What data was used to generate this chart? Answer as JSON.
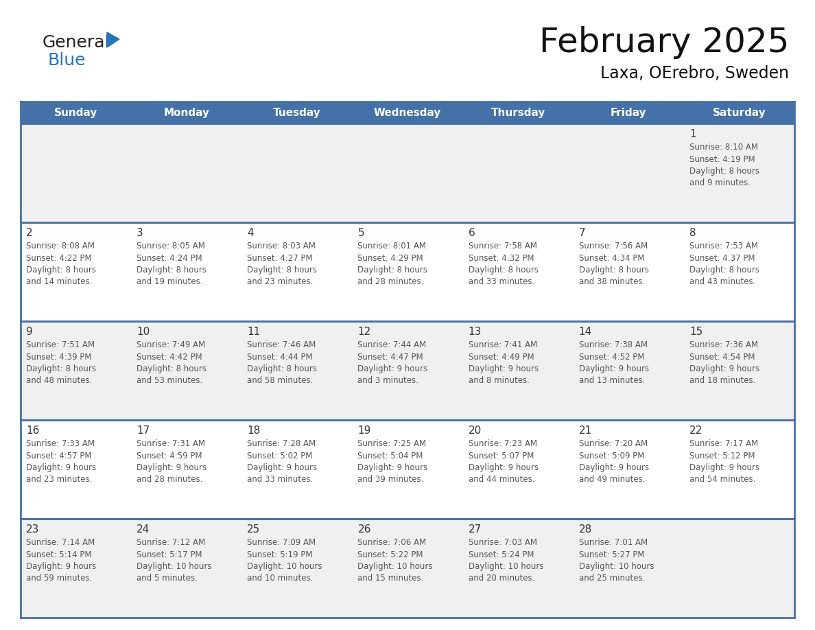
{
  "title": "February 2025",
  "subtitle": "Laxa, OErebro, Sweden",
  "days_of_week": [
    "Sunday",
    "Monday",
    "Tuesday",
    "Wednesday",
    "Thursday",
    "Friday",
    "Saturday"
  ],
  "header_bg": "#4472a8",
  "header_text": "#ffffff",
  "row_bg_light": "#f0f0f0",
  "row_bg_white": "#ffffff",
  "border_color": "#4472a8",
  "day_num_color": "#333333",
  "info_color": "#555555",
  "calendar_data": [
    {
      "day": 1,
      "col": 6,
      "row": 0,
      "sunrise": "8:10 AM",
      "sunset": "4:19 PM",
      "daylight_line1": "Daylight: 8 hours",
      "daylight_line2": "and 9 minutes."
    },
    {
      "day": 2,
      "col": 0,
      "row": 1,
      "sunrise": "8:08 AM",
      "sunset": "4:22 PM",
      "daylight_line1": "Daylight: 8 hours",
      "daylight_line2": "and 14 minutes."
    },
    {
      "day": 3,
      "col": 1,
      "row": 1,
      "sunrise": "8:05 AM",
      "sunset": "4:24 PM",
      "daylight_line1": "Daylight: 8 hours",
      "daylight_line2": "and 19 minutes."
    },
    {
      "day": 4,
      "col": 2,
      "row": 1,
      "sunrise": "8:03 AM",
      "sunset": "4:27 PM",
      "daylight_line1": "Daylight: 8 hours",
      "daylight_line2": "and 23 minutes."
    },
    {
      "day": 5,
      "col": 3,
      "row": 1,
      "sunrise": "8:01 AM",
      "sunset": "4:29 PM",
      "daylight_line1": "Daylight: 8 hours",
      "daylight_line2": "and 28 minutes."
    },
    {
      "day": 6,
      "col": 4,
      "row": 1,
      "sunrise": "7:58 AM",
      "sunset": "4:32 PM",
      "daylight_line1": "Daylight: 8 hours",
      "daylight_line2": "and 33 minutes."
    },
    {
      "day": 7,
      "col": 5,
      "row": 1,
      "sunrise": "7:56 AM",
      "sunset": "4:34 PM",
      "daylight_line1": "Daylight: 8 hours",
      "daylight_line2": "and 38 minutes."
    },
    {
      "day": 8,
      "col": 6,
      "row": 1,
      "sunrise": "7:53 AM",
      "sunset": "4:37 PM",
      "daylight_line1": "Daylight: 8 hours",
      "daylight_line2": "and 43 minutes."
    },
    {
      "day": 9,
      "col": 0,
      "row": 2,
      "sunrise": "7:51 AM",
      "sunset": "4:39 PM",
      "daylight_line1": "Daylight: 8 hours",
      "daylight_line2": "and 48 minutes."
    },
    {
      "day": 10,
      "col": 1,
      "row": 2,
      "sunrise": "7:49 AM",
      "sunset": "4:42 PM",
      "daylight_line1": "Daylight: 8 hours",
      "daylight_line2": "and 53 minutes."
    },
    {
      "day": 11,
      "col": 2,
      "row": 2,
      "sunrise": "7:46 AM",
      "sunset": "4:44 PM",
      "daylight_line1": "Daylight: 8 hours",
      "daylight_line2": "and 58 minutes."
    },
    {
      "day": 12,
      "col": 3,
      "row": 2,
      "sunrise": "7:44 AM",
      "sunset": "4:47 PM",
      "daylight_line1": "Daylight: 9 hours",
      "daylight_line2": "and 3 minutes."
    },
    {
      "day": 13,
      "col": 4,
      "row": 2,
      "sunrise": "7:41 AM",
      "sunset": "4:49 PM",
      "daylight_line1": "Daylight: 9 hours",
      "daylight_line2": "and 8 minutes."
    },
    {
      "day": 14,
      "col": 5,
      "row": 2,
      "sunrise": "7:38 AM",
      "sunset": "4:52 PM",
      "daylight_line1": "Daylight: 9 hours",
      "daylight_line2": "and 13 minutes."
    },
    {
      "day": 15,
      "col": 6,
      "row": 2,
      "sunrise": "7:36 AM",
      "sunset": "4:54 PM",
      "daylight_line1": "Daylight: 9 hours",
      "daylight_line2": "and 18 minutes."
    },
    {
      "day": 16,
      "col": 0,
      "row": 3,
      "sunrise": "7:33 AM",
      "sunset": "4:57 PM",
      "daylight_line1": "Daylight: 9 hours",
      "daylight_line2": "and 23 minutes."
    },
    {
      "day": 17,
      "col": 1,
      "row": 3,
      "sunrise": "7:31 AM",
      "sunset": "4:59 PM",
      "daylight_line1": "Daylight: 9 hours",
      "daylight_line2": "and 28 minutes."
    },
    {
      "day": 18,
      "col": 2,
      "row": 3,
      "sunrise": "7:28 AM",
      "sunset": "5:02 PM",
      "daylight_line1": "Daylight: 9 hours",
      "daylight_line2": "and 33 minutes."
    },
    {
      "day": 19,
      "col": 3,
      "row": 3,
      "sunrise": "7:25 AM",
      "sunset": "5:04 PM",
      "daylight_line1": "Daylight: 9 hours",
      "daylight_line2": "and 39 minutes."
    },
    {
      "day": 20,
      "col": 4,
      "row": 3,
      "sunrise": "7:23 AM",
      "sunset": "5:07 PM",
      "daylight_line1": "Daylight: 9 hours",
      "daylight_line2": "and 44 minutes."
    },
    {
      "day": 21,
      "col": 5,
      "row": 3,
      "sunrise": "7:20 AM",
      "sunset": "5:09 PM",
      "daylight_line1": "Daylight: 9 hours",
      "daylight_line2": "and 49 minutes."
    },
    {
      "day": 22,
      "col": 6,
      "row": 3,
      "sunrise": "7:17 AM",
      "sunset": "5:12 PM",
      "daylight_line1": "Daylight: 9 hours",
      "daylight_line2": "and 54 minutes."
    },
    {
      "day": 23,
      "col": 0,
      "row": 4,
      "sunrise": "7:14 AM",
      "sunset": "5:14 PM",
      "daylight_line1": "Daylight: 9 hours",
      "daylight_line2": "and 59 minutes."
    },
    {
      "day": 24,
      "col": 1,
      "row": 4,
      "sunrise": "7:12 AM",
      "sunset": "5:17 PM",
      "daylight_line1": "Daylight: 10 hours",
      "daylight_line2": "and 5 minutes."
    },
    {
      "day": 25,
      "col": 2,
      "row": 4,
      "sunrise": "7:09 AM",
      "sunset": "5:19 PM",
      "daylight_line1": "Daylight: 10 hours",
      "daylight_line2": "and 10 minutes."
    },
    {
      "day": 26,
      "col": 3,
      "row": 4,
      "sunrise": "7:06 AM",
      "sunset": "5:22 PM",
      "daylight_line1": "Daylight: 10 hours",
      "daylight_line2": "and 15 minutes."
    },
    {
      "day": 27,
      "col": 4,
      "row": 4,
      "sunrise": "7:03 AM",
      "sunset": "5:24 PM",
      "daylight_line1": "Daylight: 10 hours",
      "daylight_line2": "and 20 minutes."
    },
    {
      "day": 28,
      "col": 5,
      "row": 4,
      "sunrise": "7:01 AM",
      "sunset": "5:27 PM",
      "daylight_line1": "Daylight: 10 hours",
      "daylight_line2": "and 25 minutes."
    }
  ],
  "num_rows": 5,
  "logo_general_color": "#222222",
  "logo_blue_color": "#2176bd"
}
